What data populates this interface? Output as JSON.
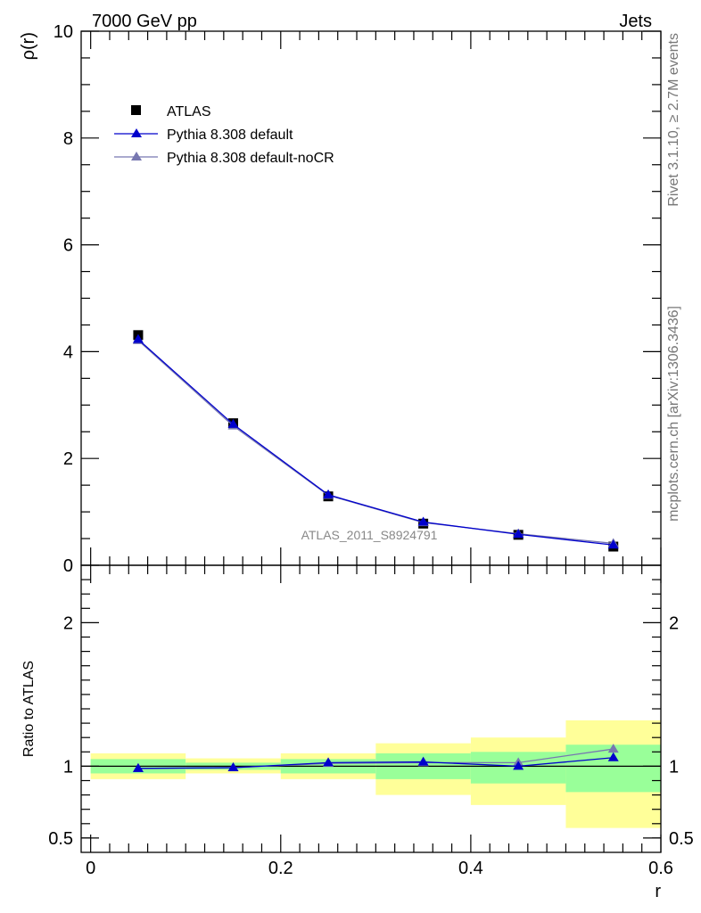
{
  "header": {
    "left_label": "7000 GeV pp",
    "right_label": "Jets"
  },
  "side_labels": {
    "rivet": "Rivet 3.1.10, ≥ 2.7M events",
    "mcplots": "mcplots.cern.ch [arXiv:1306.3436]"
  },
  "analysis_id": "ATLAS_2011_S8924791",
  "colors": {
    "data": "#000000",
    "pythia_default": "#0000cc",
    "pythia_nocr": "#7777b0",
    "band_inner": "#99ff99",
    "band_outer": "#ffff99"
  },
  "chart_data": [
    {
      "type": "line",
      "ylabel": "ρ(r)",
      "ylim": [
        0,
        10
      ],
      "xlim": [
        -0.01,
        0.6
      ],
      "yticks": [
        "0",
        "2",
        "4",
        "6",
        "8",
        "10"
      ],
      "legend_position": "top-left",
      "series": [
        {
          "name": "ATLAS",
          "kind": "data",
          "x": [
            0.05,
            0.15,
            0.25,
            0.35,
            0.45,
            0.55
          ],
          "y": [
            4.31,
            2.66,
            1.29,
            0.78,
            0.57,
            0.35
          ]
        },
        {
          "name": "Pythia 8.308 default",
          "kind": "mc",
          "x": [
            0.05,
            0.15,
            0.25,
            0.35,
            0.45,
            0.55
          ],
          "y": [
            4.23,
            2.64,
            1.32,
            0.81,
            0.58,
            0.38
          ]
        },
        {
          "name": "Pythia 8.308 default-noCR",
          "kind": "mc",
          "x": [
            0.05,
            0.15,
            0.25,
            0.35,
            0.45,
            0.55
          ],
          "y": [
            4.21,
            2.61,
            1.31,
            0.8,
            0.59,
            0.41
          ]
        }
      ]
    },
    {
      "type": "line",
      "ylabel": "Ratio to ATLAS",
      "xlabel": "r",
      "ylim": [
        0.4,
        2.4
      ],
      "xlim": [
        -0.01,
        0.6
      ],
      "yticks": [
        "0.5",
        "1",
        "2"
      ],
      "xticks": [
        "0",
        "0.2",
        "0.4",
        "0.6"
      ],
      "bands": [
        {
          "x0": 0.0,
          "x1": 0.1,
          "inner": [
            0.95,
            1.05
          ],
          "outer": [
            0.91,
            1.09
          ]
        },
        {
          "x0": 0.1,
          "x1": 0.2,
          "inner": [
            0.975,
            1.025
          ],
          "outer": [
            0.95,
            1.055
          ]
        },
        {
          "x0": 0.2,
          "x1": 0.3,
          "inner": [
            0.95,
            1.05
          ],
          "outer": [
            0.91,
            1.09
          ]
        },
        {
          "x0": 0.3,
          "x1": 0.4,
          "inner": [
            0.91,
            1.09
          ],
          "outer": [
            0.8,
            1.16
          ]
        },
        {
          "x0": 0.4,
          "x1": 0.5,
          "inner": [
            0.88,
            1.1
          ],
          "outer": [
            0.73,
            1.2
          ]
        },
        {
          "x0": 0.5,
          "x1": 0.6,
          "inner": [
            0.82,
            1.15
          ],
          "outer": [
            0.57,
            1.32
          ]
        }
      ],
      "series": [
        {
          "name": "Pythia 8.308 default",
          "x": [
            0.05,
            0.15,
            0.25,
            0.35,
            0.45,
            0.55
          ],
          "y": [
            0.985,
            0.99,
            1.025,
            1.03,
            1.0,
            1.06
          ]
        },
        {
          "name": "Pythia 8.308 default-noCR",
          "x": [
            0.05,
            0.15,
            0.25,
            0.35,
            0.45,
            0.55
          ],
          "y": [
            0.985,
            0.99,
            1.02,
            1.025,
            1.025,
            1.12
          ]
        }
      ]
    }
  ]
}
